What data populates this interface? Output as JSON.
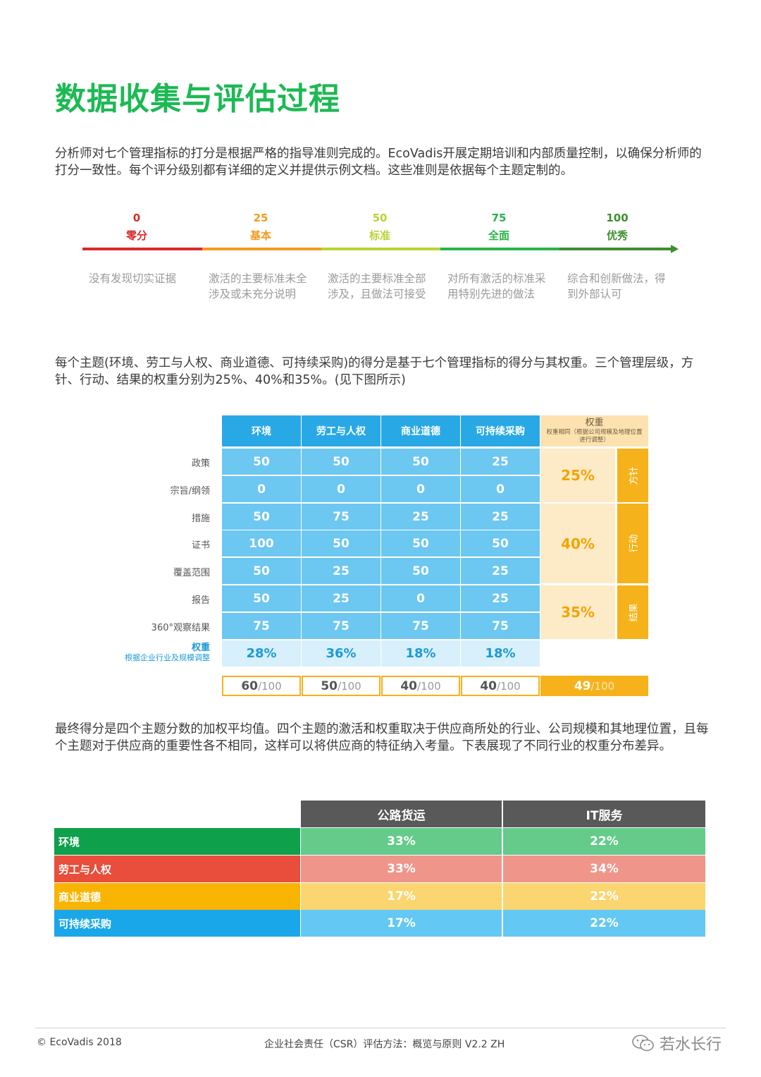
{
  "title": "数据收集与评估过程",
  "intro": "分析师对七个管理指标的打分是根据严格的指导准则完成的。EcoVadis开展定期培训和内部质量控制，以确保分析师的打分一致性。每个评分级别都有详细的定义并提供示例文档。这些准则是依据每个主题定制的。",
  "scale": [
    {
      "score": "0",
      "label": "零分",
      "color": "#d62b2b",
      "desc": "没有发现切实证据"
    },
    {
      "score": "25",
      "label": "基本",
      "color": "#f39a1e",
      "desc": "激活的主要标准未全涉及或未充分说明"
    },
    {
      "score": "50",
      "label": "标准",
      "color": "#b7d436",
      "desc": "激活的主要标准全部涉及，且做法可接受"
    },
    {
      "score": "75",
      "label": "全面",
      "color": "#2bb34a",
      "desc": "对所有激活的标准采用特别先进的做法"
    },
    {
      "score": "100",
      "label": "优秀",
      "color": "#3e8f2f",
      "desc": "综合和创新做法，得到外部认可"
    }
  ],
  "para2": "每个主题(环境、劳工与人权、商业道德、可持续采购)的得分是基于七个管理指标的得分与其权重。三个管理层级，方针、行动、结果的权重分别为25%、40%和35%。(见下图所示)",
  "score_table": {
    "headers": [
      "环境",
      "劳工与人权",
      "商业道德",
      "可持续采购"
    ],
    "weight_header": "权重",
    "weight_header_note": "权重相同（根据公司规模及地理位置进行调整）",
    "rows": [
      {
        "label": "政策",
        "values": [
          "50",
          "50",
          "50",
          "25"
        ]
      },
      {
        "label": "宗旨/纲领",
        "values": [
          "0",
          "0",
          "0",
          "0"
        ]
      },
      {
        "label": "措施",
        "values": [
          "50",
          "75",
          "25",
          "25"
        ]
      },
      {
        "label": "证书",
        "values": [
          "100",
          "50",
          "50",
          "50"
        ]
      },
      {
        "label": "覆盖范围",
        "values": [
          "50",
          "25",
          "50",
          "25"
        ]
      },
      {
        "label": "报告",
        "values": [
          "50",
          "25",
          "0",
          "25"
        ]
      },
      {
        "label": "360°观察结果",
        "values": [
          "75",
          "75",
          "75",
          "75"
        ]
      }
    ],
    "weight_row_label": "权重",
    "weight_row_sublabel": "根据企业行业及规模调整",
    "weights": [
      "28%",
      "36%",
      "18%",
      "18%"
    ],
    "levels": [
      {
        "pct": "25%",
        "name": "方针"
      },
      {
        "pct": "40%",
        "name": "行动"
      },
      {
        "pct": "35%",
        "name": "结果"
      }
    ],
    "totals": [
      {
        "score": "60",
        "den": "/100"
      },
      {
        "score": "50",
        "den": "/100"
      },
      {
        "score": "40",
        "den": "/100"
      },
      {
        "score": "40",
        "den": "/100"
      }
    ],
    "final": {
      "score": "49",
      "den": "/100"
    }
  },
  "para3": "最终得分是四个主题分数的加权平均值。四个主题的激活和权重取决于供应商所处的行业、公司规模和其地理位置，且每个主题对于供应商的重要性各不相同，这样可以将供应商的特征纳入考量。下表展现了不同行业的权重分布差异。",
  "industry_table": {
    "headers": [
      "公路货运",
      "IT服务"
    ],
    "rows": [
      {
        "label": "环境",
        "values": [
          "33%",
          "22%"
        ],
        "label_color": "#0ea04a",
        "cell_color": "#64cb8b"
      },
      {
        "label": "劳工与人权",
        "values": [
          "33%",
          "34%"
        ],
        "label_color": "#e84e3b",
        "cell_color": "#f0958a"
      },
      {
        "label": "商业道德",
        "values": [
          "17%",
          "22%"
        ],
        "label_color": "#f8b400",
        "cell_color": "#fbd56f"
      },
      {
        "label": "可持续采购",
        "values": [
          "17%",
          "22%"
        ],
        "label_color": "#1aa7ea",
        "cell_color": "#63c8f4"
      }
    ]
  },
  "footer": {
    "copyright": "© EcoVadis 2018",
    "doc_title": "企业社会责任（CSR）评估方法：概览与原则 V2.2 ZH",
    "watermark": "若水长行"
  }
}
